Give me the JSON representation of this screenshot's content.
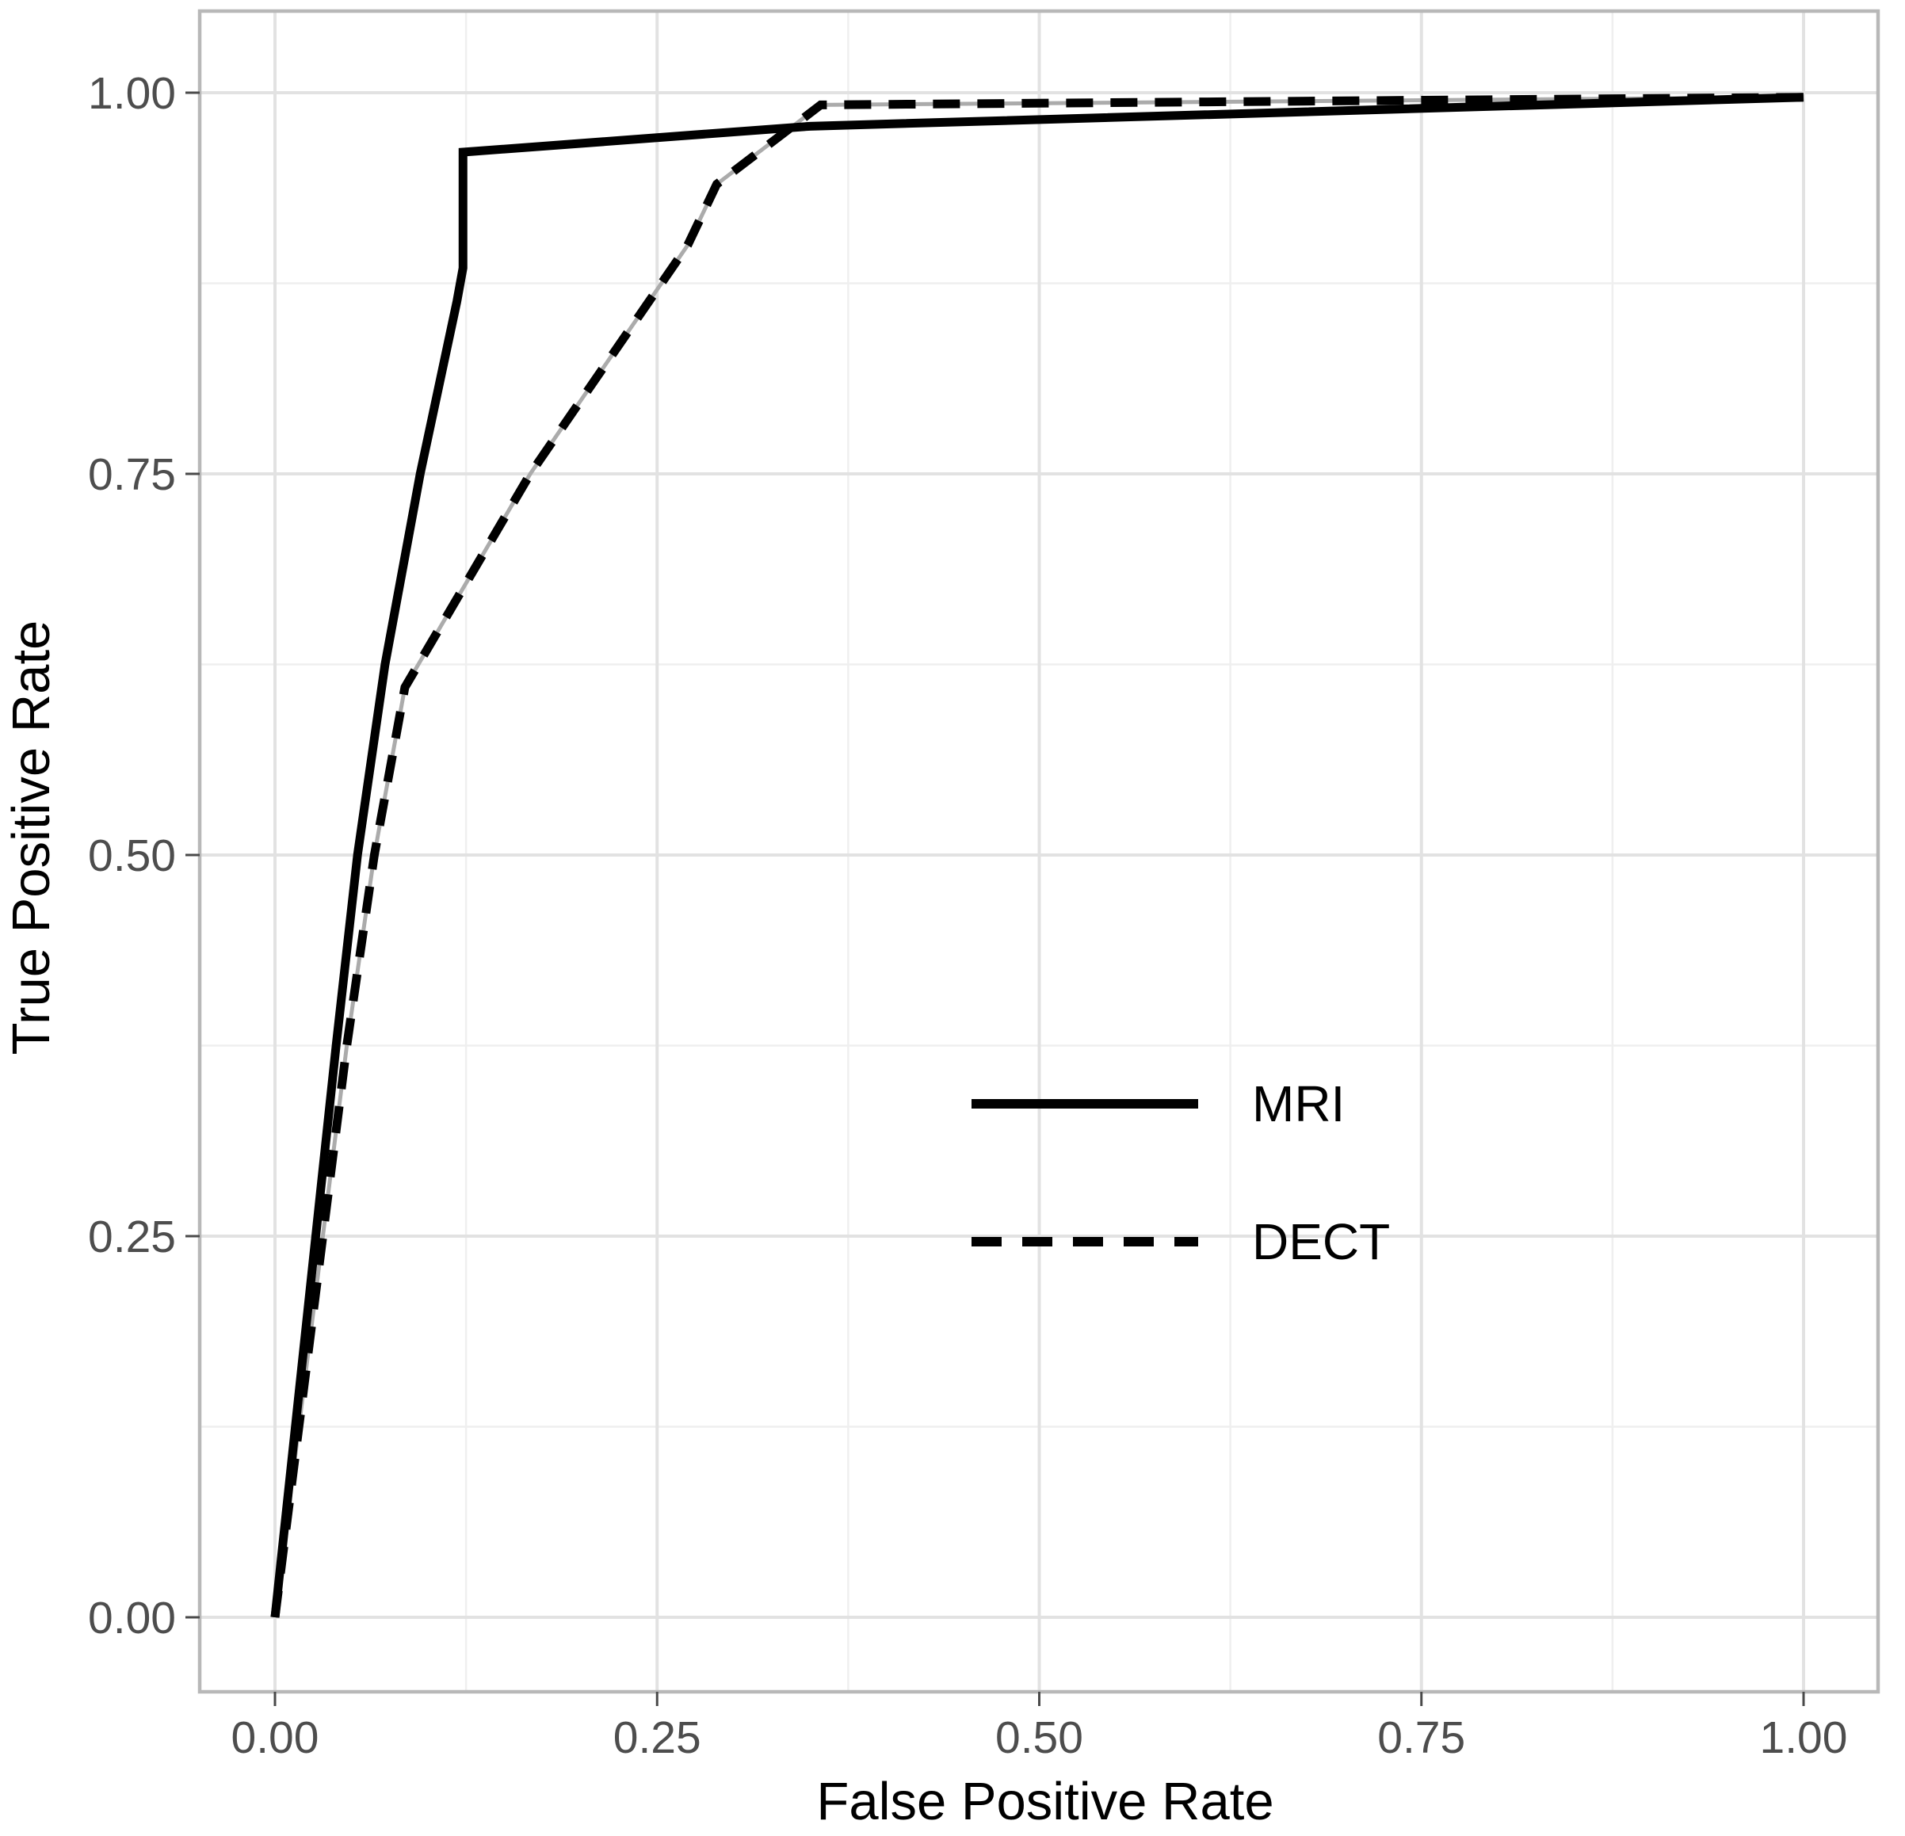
{
  "chart_data": {
    "type": "line",
    "title": "",
    "xlabel": "False Positive Rate",
    "ylabel": "True Positive Rate",
    "xlim": [
      0,
      1
    ],
    "ylim": [
      0,
      1
    ],
    "x_ticks": [
      "0.00",
      "0.25",
      "0.50",
      "0.75",
      "1.00"
    ],
    "x_tick_values": [
      0,
      0.25,
      0.5,
      0.75,
      1
    ],
    "y_ticks": [
      "0.00",
      "0.25",
      "0.50",
      "0.75",
      "1.00"
    ],
    "y_tick_values": [
      0,
      0.25,
      0.5,
      0.75,
      1
    ],
    "grid": "major and minor gridlines, light gray on white, gray panel border",
    "legend_position": "inside plot, center-right below curves",
    "series": [
      {
        "name": "MRI",
        "style": "solid",
        "color": "#000000",
        "points": [
          [
            0,
            0
          ],
          [
            0.04,
            0.375
          ],
          [
            0.054,
            0.5
          ],
          [
            0.072,
            0.625
          ],
          [
            0.095,
            0.75
          ],
          [
            0.119,
            0.863
          ],
          [
            0.123,
            0.885
          ],
          [
            0.123,
            0.961
          ],
          [
            0.35,
            0.978
          ],
          [
            1.0,
            0.997
          ]
        ]
      },
      {
        "name": "DECT",
        "style": "dashed",
        "color": "#000000",
        "underlay_color": "#ababab",
        "points": [
          [
            0,
            0
          ],
          [
            0.047,
            0.375
          ],
          [
            0.065,
            0.5
          ],
          [
            0.085,
            0.61
          ],
          [
            0.167,
            0.75
          ],
          [
            0.27,
            0.9
          ],
          [
            0.289,
            0.94
          ],
          [
            0.357,
            0.992
          ],
          [
            1.0,
            0.997
          ]
        ]
      }
    ]
  },
  "colors": {
    "background": "#ffffff",
    "grid_major": "#e2e2e2",
    "grid_minor": "#efefef",
    "panel_border": "#b8b8b8",
    "tick_label": "#4d4d4d",
    "axis_title": "#000000",
    "series": "#000000"
  }
}
